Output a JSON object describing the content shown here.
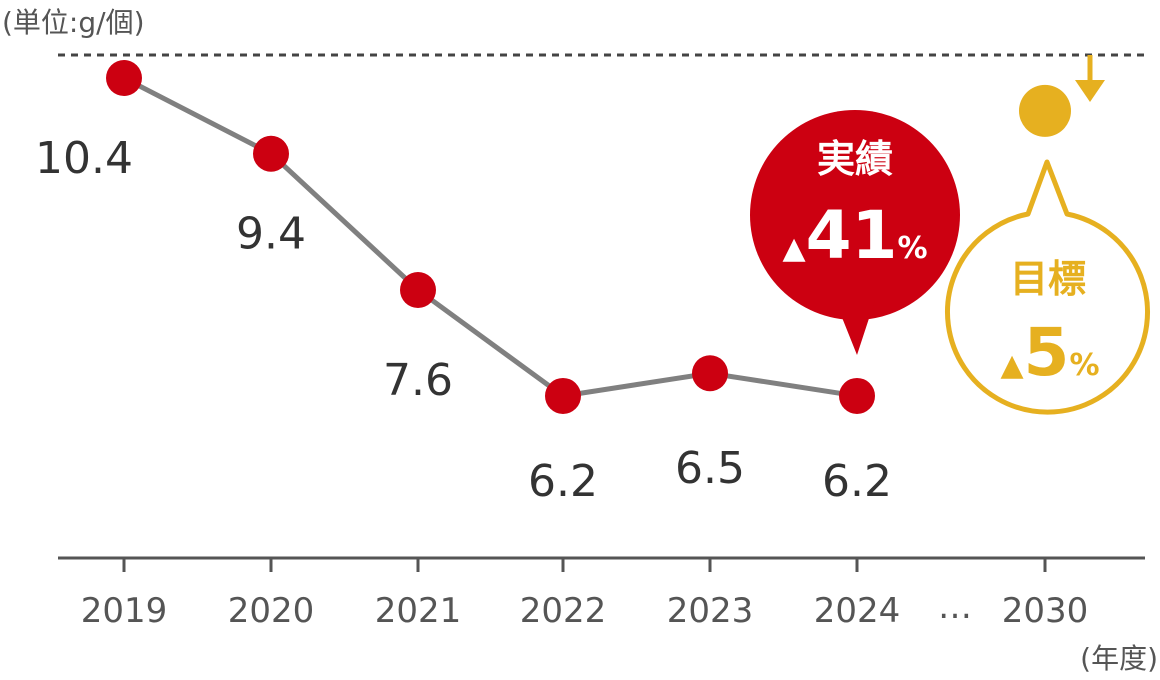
{
  "chart_data": {
    "type": "line",
    "unit_label": "(単位:g/個)",
    "x_unit_label": "(年度)",
    "categories": [
      "2019",
      "2020",
      "2021",
      "2022",
      "2023",
      "2024"
    ],
    "values": [
      10.4,
      9.4,
      7.6,
      6.2,
      6.5,
      6.2
    ],
    "value_labels": [
      "10.4",
      "9.4",
      "7.6",
      "6.2",
      "6.5",
      "6.2"
    ],
    "ellipsis": "…",
    "target": {
      "category": "2030",
      "value": 9.9
    },
    "ylim": [
      5.0,
      11.0
    ],
    "grid": false,
    "colors": {
      "actual": "#cc0011",
      "line": "#808080",
      "target": "#e6b020",
      "axis": "#555555",
      "text": "#333333"
    },
    "callouts": {
      "actual": {
        "title": "実績",
        "triangle": "▲",
        "value": "41",
        "unit": "%"
      },
      "target": {
        "title": "目標",
        "triangle": "▲",
        "value": "5",
        "unit": "%"
      }
    }
  }
}
